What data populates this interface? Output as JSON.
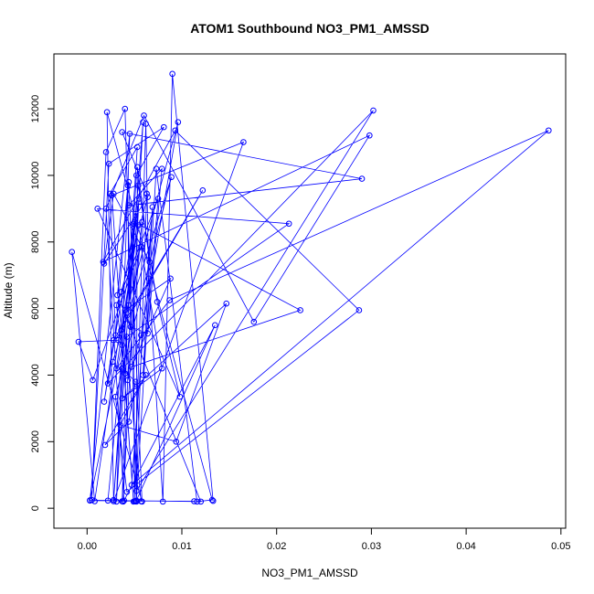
{
  "chart_data": {
    "type": "line",
    "title": "ATOM1 Southbound NO3_PM1_AMSSD",
    "xlabel": "NO3_PM1_AMSSD",
    "ylabel": "Altitude (m)",
    "xlim": [
      -0.0035,
      0.0505
    ],
    "ylim": [
      -600,
      13650
    ],
    "x_ticks": [
      0.0,
      0.01,
      0.02,
      0.03,
      0.04,
      0.05
    ],
    "x_tick_labels": [
      "0.00",
      "0.01",
      "0.02",
      "0.03",
      "0.04",
      "0.05"
    ],
    "y_ticks": [
      0,
      2000,
      4000,
      6000,
      8000,
      10000,
      12000
    ],
    "y_tick_labels": [
      "0",
      "2000",
      "4000",
      "6000",
      "8000",
      "10000",
      "12000"
    ],
    "grid": false,
    "series_color": "#0000ff",
    "series": [
      {
        "x": [
          0.0133,
          0.009,
          0.008,
          0.0065,
          0.0062,
          0.005,
          0.0049,
          0.0038,
          0.0059,
          0.0028,
          0.0021,
          0.0132,
          0.0116,
          0.0073,
          0.0052,
          0.004,
          0.002,
          0.0005,
          0.0023,
          0.0081,
          0.0052,
          0.0031,
          0.0045,
          0.0003,
          0.012,
          0.0032,
          0.0043,
          0.0044,
          0.0055,
          0.0008,
          -0.0016,
          0.0058,
          0.0044,
          0.003,
          0.0024,
          0.0053,
          0.0028,
          0.0165,
          0.0026,
          0.0049,
          0.0037,
          0.0003,
          0.0113,
          0.0022,
          0.0054,
          0.0074,
          0.0098,
          0.0011,
          0.0213,
          0.0042,
          0.0037,
          0.0051,
          0.0057,
          0.0036,
          0.0064,
          0.0018,
          0.0028,
          0.0066,
          0.0053,
          0.0052,
          0.0135,
          0.0039,
          0.002,
          0.006,
          0.0176,
          0.0298,
          0.0017,
          0.0093,
          0.0287,
          0.0042,
          0.003,
          0.0089,
          0.0027,
          0.0022,
          0.0302,
          0.0052,
          0.0063,
          0.0037,
          0.029,
          0.0044,
          0.0079,
          0.0064,
          0.0046,
          0.004,
          0.0088,
          0.0047,
          0.0225,
          0.005,
          0.0018,
          0.0028,
          0.0122,
          0.0036,
          0.0054,
          0.0031,
          0.0087,
          0.0487,
          0.0047,
          0.0069,
          0.0059,
          0.0075,
          0.0031,
          0.004,
          0.0058,
          0.0043,
          0.0057,
          0.0096,
          0.0033,
          -0.0009,
          0.0006,
          0.0057,
          0.0079,
          0.0037,
          0.0147,
          0.0094,
          0.0035,
          0.0062,
          0.0019,
          0.0044,
          0.0051,
          0.0037
        ],
        "y": [
          220,
          13050,
          200,
          6900,
          11550,
          210,
          8550,
          200,
          11600,
          250,
          11900,
          250,
          200,
          10200,
          200,
          12000,
          10700,
          250,
          10350,
          11450,
          10000,
          200,
          11250,
          240,
          200,
          6400,
          9700,
          6100,
          9300,
          210,
          7700,
          200,
          9800,
          5200,
          9450,
          10850,
          210,
          11000,
          9400,
          200,
          4900,
          230,
          210,
          230,
          9700,
          6200,
          3350,
          9000,
          8550,
          5150,
          210,
          220,
          210,
          6500,
          9350,
          7350,
          9450,
          7400,
          10250,
          230,
          5500,
          230,
          9000,
          11800,
          5600,
          11200,
          7400,
          11350,
          5950,
          490,
          3350,
          9950,
          4400,
          3750,
          11950,
          520,
          9450,
          11300,
          9900,
          9100,
          10200,
          5250,
          5450,
          5950,
          6900,
          4250,
          5950,
          8600,
          3200,
          5050,
          9550,
          5350,
          8500,
          4200,
          6250,
          11350,
          700,
          9050,
          4000,
          9300,
          6100,
          4050,
          8600,
          3850,
          5200,
          11600,
          5050,
          5000,
          3850,
          7850,
          4200,
          3300,
          6150,
          2000,
          2500,
          4000,
          1900,
          2600,
          3800,
          4200
        ]
      }
    ]
  }
}
